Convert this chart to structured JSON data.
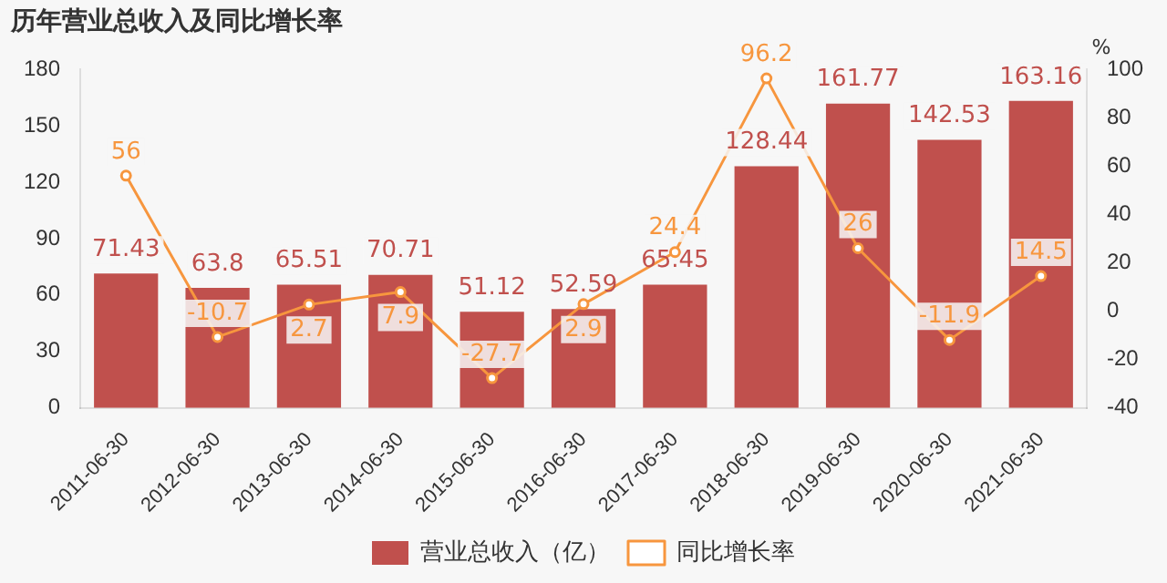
{
  "chart_data": {
    "type": "bar",
    "title": "历年营业总收入及同比增长率",
    "y2label": "%",
    "categories": [
      "2011-06-30",
      "2012-06-30",
      "2013-06-30",
      "2014-06-30",
      "2015-06-30",
      "2016-06-30",
      "2017-06-30",
      "2018-06-30",
      "2019-06-30",
      "2020-06-30",
      "2021-06-30"
    ],
    "series": [
      {
        "name": "营业总收入（亿）",
        "color": "#c0504d",
        "values": [
          71.43,
          63.8,
          65.51,
          70.71,
          51.12,
          52.59,
          65.45,
          128.44,
          161.77,
          142.53,
          163.16
        ]
      },
      {
        "name": "同比增长率",
        "type": "line",
        "axis": "y2",
        "color": "#f7963e",
        "marker": "circle",
        "values": [
          56,
          -10.7,
          2.7,
          7.9,
          -27.7,
          2.9,
          24.4,
          96.2,
          26,
          -11.9,
          14.5
        ]
      }
    ],
    "ylim": [
      0,
      180
    ],
    "yticks": [
      0,
      30,
      60,
      90,
      120,
      150,
      180
    ],
    "y2lim": [
      -40,
      100
    ],
    "y2ticks": [
      -40,
      -20,
      0,
      20,
      40,
      60,
      80,
      100
    ],
    "data_labels": true,
    "grid": false,
    "legend": "bottom"
  }
}
